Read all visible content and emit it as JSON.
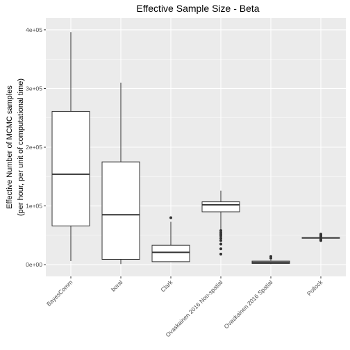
{
  "chart_data": {
    "type": "boxplot",
    "title": "Effective Sample Size - Beta",
    "xlabel": "",
    "ylabel_lines": [
      "Effective Number of MCMC samples",
      "(per hour, per unit of computational time)"
    ],
    "ylim": [
      -20000,
      420000
    ],
    "yticks": [
      0,
      100000,
      200000,
      300000,
      400000
    ],
    "ytick_labels": [
      "0e+00",
      "1e+05",
      "2e+05",
      "3e+05",
      "4e+05"
    ],
    "grid": true,
    "legend": "none",
    "categories": [
      "BayesComm",
      "boral",
      "Clark",
      "Ovaskainen 2016 Non-spatial",
      "Ovaskainen 2016 Spatial",
      "Pollock"
    ],
    "boxes": [
      {
        "category": "BayesComm",
        "whisker_low": 6000,
        "q1": 66000,
        "median": 154000,
        "q3": 261000,
        "whisker_high": 396000,
        "outliers": []
      },
      {
        "category": "boral",
        "whisker_low": 1000,
        "q1": 9000,
        "median": 85000,
        "q3": 175000,
        "whisker_high": 310000,
        "outliers": []
      },
      {
        "category": "Clark",
        "whisker_low": 5000,
        "q1": 5000,
        "median": 21000,
        "q3": 33000,
        "whisker_high": 73000,
        "outliers": [
          80000
        ]
      },
      {
        "category": "Ovaskainen 2016 Non-spatial",
        "whisker_low": 60000,
        "q1": 90000,
        "median": 102000,
        "q3": 107000,
        "whisker_high": 126000,
        "outliers": [
          58000,
          55000,
          52000,
          49000,
          45000,
          41000,
          35000,
          27000,
          18000
        ]
      },
      {
        "category": "Ovaskainen 2016 Spatial",
        "whisker_low": 1000,
        "q1": 2000,
        "median": 4000,
        "q3": 6000,
        "whisker_high": 8000,
        "outliers": [
          11000,
          14000
        ]
      },
      {
        "category": "Pollock",
        "whisker_low": 44500,
        "q1": 45000,
        "median": 45500,
        "q3": 46000,
        "whisker_high": 46500,
        "outliers": [
          41000,
          43000,
          48000,
          50000,
          52000
        ]
      }
    ]
  },
  "colors": {
    "panel_background": "#ebebeb",
    "grid_major": "#ffffff",
    "box_fill": "#ffffff",
    "box_stroke": "#333333",
    "text": "#000000",
    "tick_text": "#4d4d4d"
  }
}
